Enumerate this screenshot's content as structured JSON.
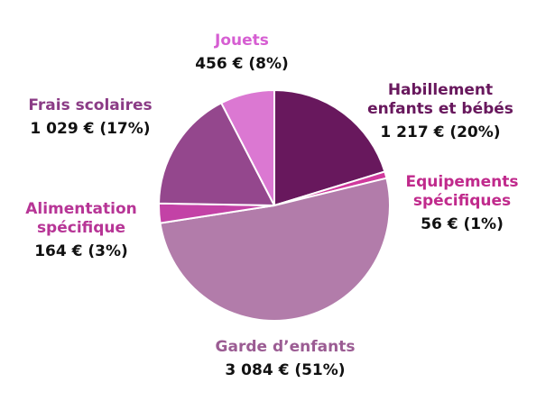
{
  "chart_data": {
    "type": "pie",
    "currency": "€",
    "slices": [
      {
        "label_lines": [
          "Habillement",
          "enfants et bébés"
        ],
        "value": 1217,
        "value_text": "1 217",
        "percent": 20,
        "color": "#68185d",
        "label_color": "#68185d"
      },
      {
        "label_lines": [
          "Equipements",
          "spécifiques"
        ],
        "value": 56,
        "value_text": "56",
        "percent": 1,
        "color": "#d0399d",
        "label_color": "#c02a8c"
      },
      {
        "label_lines": [
          "Garde d’enfants"
        ],
        "value": 3084,
        "value_text": "3 084",
        "percent": 51,
        "color": "#b27caa",
        "label_color": "#9b5c93"
      },
      {
        "label_lines": [
          "Alimentation",
          "spécifique"
        ],
        "value": 164,
        "value_text": "164",
        "percent": 3,
        "color": "#c342a6",
        "label_color": "#b73596"
      },
      {
        "label_lines": [
          "Frais scolaires"
        ],
        "value": 1029,
        "value_text": "1 029",
        "percent": 17,
        "color": "#94478d",
        "label_color": "#8b3c86"
      },
      {
        "label_lines": [
          "Jouets"
        ],
        "value": 456,
        "value_text": "456",
        "percent": 8,
        "color": "#db78d2",
        "label_color": "#d65ed2"
      }
    ]
  }
}
